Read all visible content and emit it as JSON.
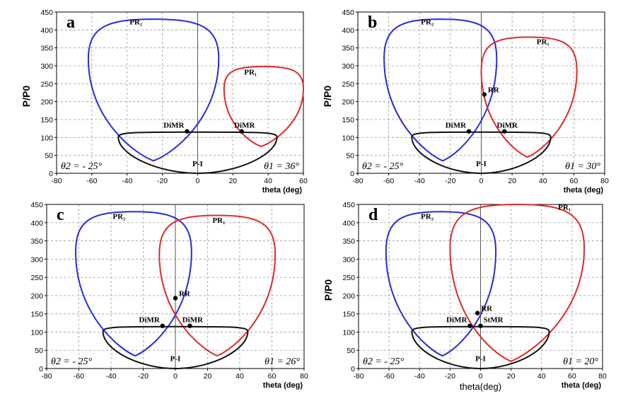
{
  "chart_data": [
    {
      "type": "line",
      "panel_label": "a",
      "xlabel": "theta (deg)",
      "ylabel": "P/P0",
      "xlim": [
        -80,
        60
      ],
      "ylim": [
        0,
        450
      ],
      "xticks": [
        -80,
        -60,
        -40,
        -20,
        0,
        20,
        40,
        60
      ],
      "yticks": [
        0,
        50,
        100,
        150,
        200,
        250,
        300,
        350,
        400,
        450
      ],
      "grid": true,
      "annotations": {
        "theta2": "θ2 = - 25°",
        "theta1": "θ1 = 36°"
      },
      "curves": [
        {
          "label": "PR₂",
          "color": "#2a2ae0",
          "center": -25,
          "minx": -62,
          "maxx": 12,
          "top": 430,
          "bottom": 35,
          "label_pos": [
            -35,
            415
          ]
        },
        {
          "label": "PR₁",
          "color": "#e02a2a",
          "center": 36,
          "minx": 15,
          "maxx": 60,
          "top": 298,
          "bottom": 75,
          "label_pos": [
            30,
            275
          ]
        },
        {
          "label": "P-I",
          "color": "#111111",
          "center": 0,
          "minx": -45,
          "maxx": 45,
          "top": 115,
          "bottom": 0,
          "label_pos": [
            0,
            20
          ]
        }
      ],
      "points": [
        {
          "label": "DiMR",
          "x": -6,
          "y": 117
        },
        {
          "label": "DiMR",
          "x": 25,
          "y": 117
        }
      ]
    },
    {
      "type": "line",
      "panel_label": "b",
      "xlabel": "theta (deg)",
      "ylabel": "P/P0",
      "xlim": [
        -80,
        80
      ],
      "ylim": [
        0,
        450
      ],
      "xticks": [
        -80,
        -60,
        -40,
        -20,
        0,
        20,
        40,
        60,
        80
      ],
      "yticks": [
        0,
        50,
        100,
        150,
        200,
        250,
        300,
        350,
        400,
        450
      ],
      "grid": true,
      "annotations": {
        "theta2": "θ2 = - 25°",
        "theta1": "θ1 = 30°"
      },
      "curves": [
        {
          "label": "PR₂",
          "color": "#2a2ae0",
          "center": -25,
          "minx": -63,
          "maxx": 10,
          "top": 430,
          "bottom": 35,
          "label_pos": [
            -35,
            415
          ]
        },
        {
          "label": "PR₁",
          "color": "#e02a2a",
          "center": 30,
          "minx": 0,
          "maxx": 62,
          "top": 380,
          "bottom": 45,
          "label_pos": [
            40,
            360
          ]
        },
        {
          "label": "P-I",
          "color": "#111111",
          "center": 0,
          "minx": -45,
          "maxx": 45,
          "top": 115,
          "bottom": 0,
          "label_pos": [
            0,
            20
          ]
        }
      ],
      "points": [
        {
          "label": "DiMR",
          "x": -8,
          "y": 117
        },
        {
          "label": "DiMR",
          "x": 15,
          "y": 117
        },
        {
          "label": "RR",
          "x": 2,
          "y": 220
        }
      ]
    },
    {
      "type": "line",
      "panel_label": "c",
      "xlabel": "theta (deg)",
      "ylabel": "",
      "xlim": [
        -80,
        80
      ],
      "ylim": [
        0,
        450
      ],
      "xticks": [
        -80,
        -60,
        -40,
        -20,
        0,
        20,
        40,
        60,
        80
      ],
      "yticks": [
        0,
        50,
        100,
        150,
        200,
        250,
        300,
        350,
        400,
        450
      ],
      "grid": true,
      "annotations": {
        "theta2": "θ2 = - 25°",
        "theta1": "θ1 = 26°"
      },
      "curves": [
        {
          "label": "PR₂",
          "color": "#2a2ae0",
          "center": -25,
          "minx": -62,
          "maxx": 10,
          "top": 430,
          "bottom": 35,
          "label_pos": [
            -35,
            410
          ]
        },
        {
          "label": "PR₁",
          "color": "#e02a2a",
          "center": 26,
          "minx": -10,
          "maxx": 62,
          "top": 420,
          "bottom": 35,
          "label_pos": [
            27,
            400
          ]
        },
        {
          "label": "P-I",
          "color": "#111111",
          "center": 0,
          "minx": -45,
          "maxx": 45,
          "top": 115,
          "bottom": 0,
          "label_pos": [
            0,
            20
          ]
        }
      ],
      "points": [
        {
          "label": "DiMR",
          "x": -8,
          "y": 117
        },
        {
          "label": "DiMR",
          "x": 9,
          "y": 117
        },
        {
          "label": "RR",
          "x": 0,
          "y": 193
        }
      ]
    },
    {
      "type": "line",
      "panel_label": "d",
      "xlabel": "theta (deg)",
      "ylabel": "P/P0",
      "xlabel_bottom": "theta(deg)",
      "xlim": [
        -80,
        80
      ],
      "ylim": [
        0,
        450
      ],
      "xticks": [
        -80,
        -60,
        -40,
        -20,
        0,
        20,
        40,
        60,
        80
      ],
      "yticks": [
        0,
        50,
        100,
        150,
        200,
        250,
        300,
        350,
        400,
        450
      ],
      "grid": true,
      "annotations": {
        "theta2": "θ2 = - 25°",
        "theta1": "θ1 = 20°"
      },
      "curves": [
        {
          "label": "PR₂",
          "color": "#2a2ae0",
          "center": -25,
          "minx": -62,
          "maxx": 10,
          "top": 430,
          "bottom": 35,
          "label_pos": [
            -35,
            410
          ]
        },
        {
          "label": "PR₁",
          "color": "#e02a2a",
          "center": 20,
          "minx": -20,
          "maxx": 68,
          "top": 450,
          "bottom": 20,
          "label_pos": [
            55,
            435
          ]
        },
        {
          "label": "P-I",
          "color": "#111111",
          "center": 0,
          "minx": -45,
          "maxx": 45,
          "top": 115,
          "bottom": 0,
          "label_pos": [
            0,
            20
          ]
        }
      ],
      "points": [
        {
          "label": "DiMR",
          "x": -7,
          "y": 117
        },
        {
          "label": "StMR",
          "x": 0,
          "y": 117
        },
        {
          "label": "RR",
          "x": -2,
          "y": 152
        }
      ]
    }
  ]
}
